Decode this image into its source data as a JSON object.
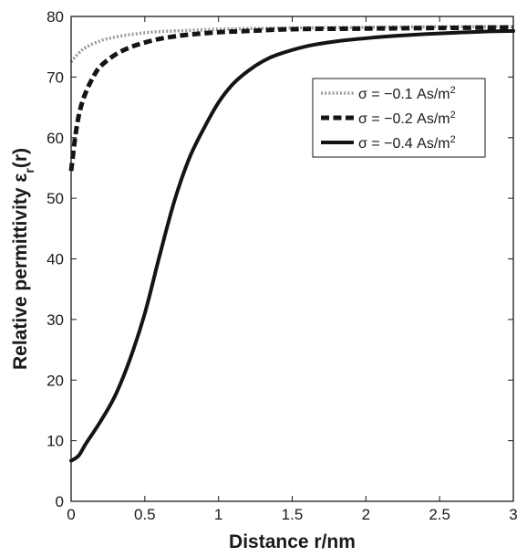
{
  "chart_data": {
    "type": "line",
    "title": "",
    "xlabel": "Distance r/nm",
    "ylabel_main": "Relative permittivity ε",
    "ylabel_sub": "r",
    "ylabel_tail": "(r)",
    "xlim": [
      0,
      3
    ],
    "ylim": [
      0,
      80
    ],
    "xticks": [
      0,
      0.5,
      1,
      1.5,
      2,
      2.5,
      3
    ],
    "xtick_labels": [
      "0",
      "0.5",
      "1",
      "1.5",
      "2",
      "2.5",
      "3"
    ],
    "yticks": [
      0,
      10,
      20,
      30,
      40,
      50,
      60,
      70,
      80
    ],
    "ytick_labels": [
      "0",
      "10",
      "20",
      "30",
      "40",
      "50",
      "60",
      "70",
      "80"
    ],
    "grid": false,
    "legend_position": "top-right",
    "series": [
      {
        "name": "σ = −0.1 As/m²",
        "label_main": "σ = −0.1 As/m",
        "label_sup": "2",
        "color": "#9a9a9a",
        "style": "dotted",
        "x": [
          0,
          0.05,
          0.1,
          0.2,
          0.3,
          0.4,
          0.5,
          0.6,
          0.7,
          0.8,
          1.0,
          1.2,
          1.5,
          2.0,
          2.5,
          3.0
        ],
        "y": [
          72.5,
          73.9,
          74.9,
          76.0,
          76.6,
          77.0,
          77.3,
          77.5,
          77.6,
          77.7,
          77.9,
          78.0,
          78.1,
          78.2,
          78.3,
          78.3
        ]
      },
      {
        "name": "σ = −0.2 As/m²",
        "label_main": "σ = −0.2 As/m",
        "label_sup": "2",
        "color": "#141414",
        "style": "dashed",
        "x": [
          0,
          0.03,
          0.06,
          0.1,
          0.15,
          0.2,
          0.3,
          0.4,
          0.5,
          0.6,
          0.7,
          0.8,
          1.0,
          1.2,
          1.5,
          2.0,
          2.5,
          3.0
        ],
        "y": [
          54.5,
          60.5,
          64.5,
          67.5,
          70.0,
          71.8,
          73.7,
          74.9,
          75.7,
          76.3,
          76.7,
          77.0,
          77.4,
          77.6,
          77.9,
          78.0,
          78.1,
          78.2
        ]
      },
      {
        "name": "σ = −0.4 As/m²",
        "label_main": "σ = −0.4 As/m",
        "label_sup": "2",
        "color": "#141414",
        "style": "solid",
        "x": [
          0,
          0.05,
          0.1,
          0.2,
          0.3,
          0.4,
          0.5,
          0.6,
          0.7,
          0.8,
          0.9,
          1.0,
          1.1,
          1.2,
          1.3,
          1.4,
          1.6,
          1.8,
          2.0,
          2.2,
          2.5,
          2.8,
          3.0
        ],
        "y": [
          6.7,
          7.5,
          9.5,
          13.2,
          17.5,
          23.5,
          31.0,
          40.5,
          49.5,
          56.5,
          61.5,
          65.8,
          68.9,
          71.0,
          72.6,
          73.7,
          75.1,
          75.9,
          76.4,
          76.8,
          77.2,
          77.5,
          77.6
        ]
      }
    ]
  }
}
